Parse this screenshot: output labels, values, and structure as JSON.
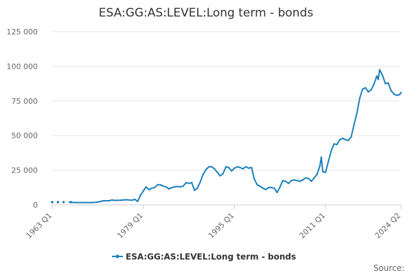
{
  "chart_data": {
    "type": "line",
    "title": "ESA:GG:AS:LEVEL:Long term - bonds",
    "xlabel": "",
    "ylabel": "",
    "ylim": [
      0,
      125000
    ],
    "y_ticks": [
      0,
      25000,
      50000,
      75000,
      100000,
      125000
    ],
    "y_tick_labels": [
      "0",
      "25 000",
      "50 000",
      "75 000",
      "100 000",
      "125 000"
    ],
    "x_range": [
      "1963 Q1",
      "2024 Q2"
    ],
    "x_ticks": [
      "1963 Q1",
      "1979 Q1",
      "1995 Q1",
      "2011 Q1",
      "2024 Q2"
    ],
    "grid": "horizontal",
    "legend_position": "bottom",
    "color": "#1b7fb9",
    "series": [
      {
        "name": "ESA:GG:AS:LEVEL:Long term - bonds",
        "segments": [
          [
            [
              "1963 Q1",
              2000
            ]
          ],
          [
            [
              "1964 Q1",
              2000
            ]
          ],
          [
            [
              "1965 Q1",
              2000
            ]
          ],
          [
            [
              "1966 Q2",
              2000
            ]
          ],
          [
            [
              "1966 Q1",
              2000
            ],
            [
              "1967 Q1",
              1700
            ],
            [
              "1969 Q1",
              1700
            ],
            [
              "1970 Q1",
              1700
            ],
            [
              "1971 Q1",
              2000
            ],
            [
              "1971 Q3",
              2500
            ],
            [
              "1972 Q1",
              3000
            ],
            [
              "1973 Q1",
              3000
            ],
            [
              "1973 Q3",
              3500
            ],
            [
              "1974 Q1",
              3200
            ],
            [
              "1975 Q1",
              3300
            ],
            [
              "1976 Q1",
              3700
            ],
            [
              "1977 Q1",
              3300
            ],
            [
              "1977 Q3",
              4000
            ],
            [
              "1978 Q1",
              2500
            ],
            [
              "1978 Q3",
              7000
            ],
            [
              "1979 Q1",
              10000
            ],
            [
              "1979 Q3",
              13000
            ],
            [
              "1980 Q1",
              11000
            ],
            [
              "1980 Q3",
              12000
            ],
            [
              "1981 Q1",
              12500
            ],
            [
              "1981 Q3",
              14500
            ],
            [
              "1982 Q1",
              14500
            ],
            [
              "1982 Q3",
              13500
            ],
            [
              "1983 Q1",
              13000
            ],
            [
              "1983 Q3",
              11500
            ],
            [
              "1984 Q1",
              12500
            ],
            [
              "1984 Q3",
              13000
            ],
            [
              "1985 Q1",
              13200
            ],
            [
              "1985 Q3",
              13000
            ],
            [
              "1986 Q1",
              13500
            ],
            [
              "1986 Q3",
              16000
            ],
            [
              "1987 Q1",
              15500
            ],
            [
              "1987 Q3",
              16000
            ],
            [
              "1988 Q1",
              10500
            ],
            [
              "1988 Q3",
              12000
            ],
            [
              "1989 Q1",
              16500
            ],
            [
              "1989 Q3",
              22000
            ],
            [
              "1990 Q1",
              25500
            ],
            [
              "1990 Q3",
              27500
            ],
            [
              "1991 Q1",
              27500
            ],
            [
              "1991 Q3",
              26000
            ],
            [
              "1992 Q1",
              23500
            ],
            [
              "1992 Q3",
              21000
            ],
            [
              "1993 Q1",
              22500
            ],
            [
              "1993 Q3",
              27500
            ],
            [
              "1994 Q1",
              27000
            ],
            [
              "1994 Q3",
              24500
            ],
            [
              "1995 Q1",
              26500
            ],
            [
              "1995 Q3",
              27500
            ],
            [
              "1996 Q1",
              27000
            ],
            [
              "1996 Q3",
              26000
            ],
            [
              "1997 Q1",
              27500
            ],
            [
              "1997 Q3",
              26500
            ],
            [
              "1998 Q1",
              27000
            ],
            [
              "1998 Q3",
              18500
            ],
            [
              "1999 Q1",
              14500
            ],
            [
              "1999 Q3",
              13500
            ],
            [
              "2000 Q1",
              12000
            ],
            [
              "2000 Q3",
              11000
            ],
            [
              "2001 Q1",
              12500
            ],
            [
              "2001 Q3",
              12500
            ],
            [
              "2002 Q1",
              12000
            ],
            [
              "2002 Q3",
              9000
            ],
            [
              "2003 Q1",
              13000
            ],
            [
              "2003 Q3",
              17500
            ],
            [
              "2004 Q1",
              17000
            ],
            [
              "2004 Q3",
              15500
            ],
            [
              "2005 Q1",
              17500
            ],
            [
              "2005 Q3",
              18000
            ],
            [
              "2006 Q1",
              17500
            ],
            [
              "2006 Q3",
              17000
            ],
            [
              "2007 Q1",
              18000
            ],
            [
              "2007 Q3",
              19500
            ],
            [
              "2008 Q1",
              19000
            ],
            [
              "2008 Q3",
              17000
            ],
            [
              "2009 Q1",
              19500
            ],
            [
              "2009 Q3",
              22000
            ],
            [
              "2010 Q1",
              28000
            ],
            [
              "2010 Q2",
              34500
            ],
            [
              "2010 Q3",
              24000
            ],
            [
              "2011 Q1",
              23500
            ],
            [
              "2011 Q3",
              31500
            ],
            [
              "2012 Q1",
              39000
            ],
            [
              "2012 Q3",
              44000
            ],
            [
              "2013 Q1",
              43500
            ],
            [
              "2013 Q3",
              47000
            ],
            [
              "2014 Q1",
              48000
            ],
            [
              "2014 Q3",
              47000
            ],
            [
              "2015 Q1",
              46500
            ],
            [
              "2015 Q3",
              49000
            ],
            [
              "2016 Q1",
              58000
            ],
            [
              "2016 Q3",
              66000
            ],
            [
              "2017 Q1",
              77000
            ],
            [
              "2017 Q3",
              83500
            ],
            [
              "2018 Q1",
              84500
            ],
            [
              "2018 Q3",
              81500
            ],
            [
              "2019 Q1",
              83000
            ],
            [
              "2019 Q3",
              87000
            ],
            [
              "2020 Q1",
              93000
            ],
            [
              "2020 Q2",
              90500
            ],
            [
              "2020 Q3",
              97500
            ],
            [
              "2021 Q1",
              93500
            ],
            [
              "2021 Q3",
              87500
            ],
            [
              "2022 Q1",
              88000
            ],
            [
              "2022 Q3",
              82500
            ],
            [
              "2023 Q1",
              80000
            ],
            [
              "2023 Q3",
              79000
            ],
            [
              "2024 Q1",
              79500
            ],
            [
              "2024 Q2",
              81000
            ]
          ]
        ]
      }
    ]
  },
  "footer": {
    "source_label": "Source:"
  }
}
